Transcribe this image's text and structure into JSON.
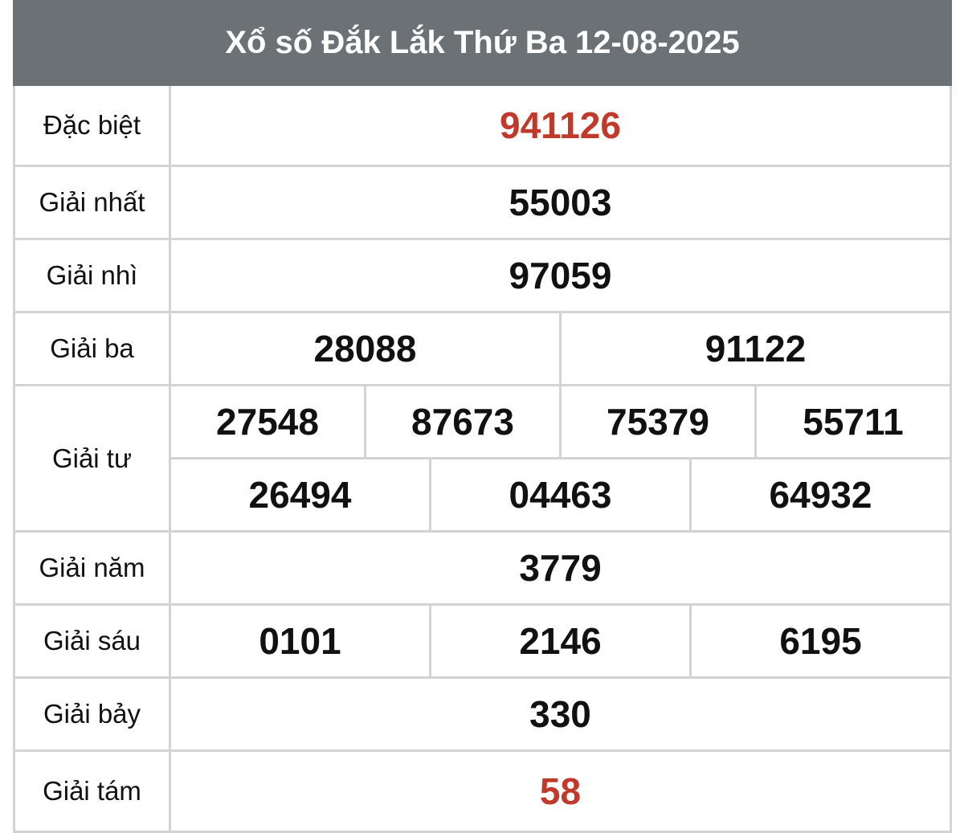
{
  "title": "Xổ số Đắk Lắk Thứ Ba 12-08-2025",
  "accent_color": "#c0392b",
  "prizes": [
    {
      "label": "Đặc biệt",
      "rows": [
        [
          "941126"
        ]
      ],
      "highlight": true
    },
    {
      "label": "Giải nhất",
      "rows": [
        [
          "55003"
        ]
      ]
    },
    {
      "label": "Giải nhì",
      "rows": [
        [
          "97059"
        ]
      ]
    },
    {
      "label": "Giải ba",
      "rows": [
        [
          "28088",
          "91122"
        ]
      ]
    },
    {
      "label": "Giải tư",
      "rows": [
        [
          "27548",
          "87673",
          "75379",
          "55711"
        ],
        [
          "26494",
          "04463",
          "64932"
        ]
      ]
    },
    {
      "label": "Giải năm",
      "rows": [
        [
          "3779"
        ]
      ]
    },
    {
      "label": "Giải sáu",
      "rows": [
        [
          "0101",
          "2146",
          "6195"
        ]
      ]
    },
    {
      "label": "Giải bảy",
      "rows": [
        [
          "330"
        ]
      ]
    },
    {
      "label": "Giải tám",
      "rows": [
        [
          "58"
        ]
      ],
      "highlight": true
    }
  ]
}
